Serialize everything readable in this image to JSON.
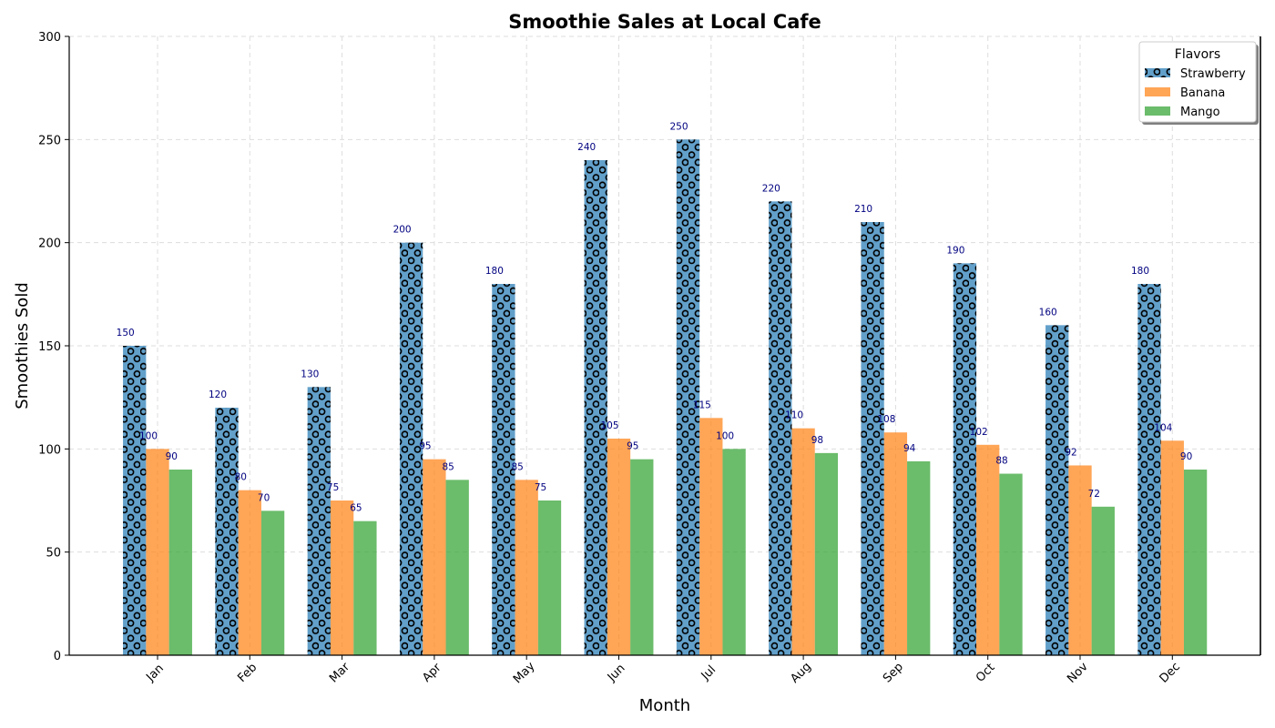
{
  "chart_data": {
    "type": "bar",
    "title": "Smoothie Sales at Local Cafe",
    "xlabel": "Month",
    "ylabel": "Smoothies Sold",
    "categories": [
      "Jan",
      "Feb",
      "Mar",
      "Apr",
      "May",
      "Jun",
      "Jul",
      "Aug",
      "Sep",
      "Oct",
      "Nov",
      "Dec"
    ],
    "ylim": [
      0,
      300
    ],
    "yticks": [
      0,
      50,
      100,
      150,
      200,
      250,
      300
    ],
    "grid": true,
    "legend": {
      "title": "Flavors",
      "placement": "top-right"
    },
    "series": [
      {
        "name": "Strawberry",
        "color": "#1f77b4",
        "pattern": "circles",
        "values": [
          150,
          120,
          130,
          200,
          180,
          240,
          250,
          220,
          210,
          190,
          160,
          180
        ]
      },
      {
        "name": "Banana",
        "color": "#ff7f0e",
        "values": [
          100,
          80,
          75,
          95,
          85,
          105,
          115,
          110,
          108,
          102,
          92,
          104
        ]
      },
      {
        "name": "Mango",
        "color": "#2ca02c",
        "values": [
          90,
          70,
          65,
          85,
          75,
          95,
          100,
          98,
          94,
          88,
          72,
          90
        ]
      }
    ],
    "label_color": "#000080"
  }
}
